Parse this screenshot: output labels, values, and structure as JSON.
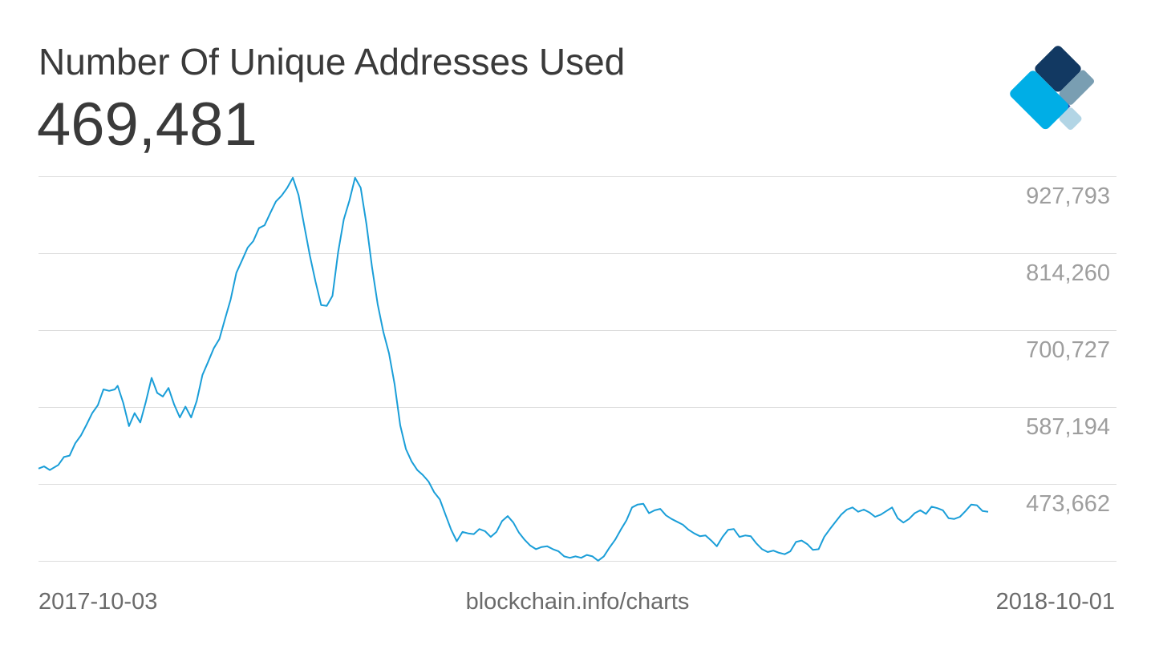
{
  "header": {
    "title": "Number Of Unique Addresses Used",
    "current_value": "469,481"
  },
  "footer": {
    "start_date": "2017-10-03",
    "source": "blockchain.info/charts",
    "end_date": "2018-10-01"
  },
  "logo": {
    "name": "blockchain-logo-icon",
    "colors": [
      "#123962",
      "#799eb2",
      "#2949b8",
      "#00aee6",
      "#b2d5e5"
    ]
  },
  "colors": {
    "line": "#1a9ed8",
    "grid": "#dddddd",
    "tick": "#9e9e9e"
  },
  "chart_data": {
    "type": "line",
    "title": "Number Of Unique Addresses Used",
    "xlabel": "",
    "ylabel": "",
    "x_range": [
      "2017-10-03",
      "2018-10-01"
    ],
    "yticks": [
      927793,
      814260,
      700727,
      587194,
      473662
    ],
    "ytick_labels": [
      "927,793",
      "814,260",
      "700,727",
      "587,194",
      "473,662"
    ],
    "ylim": [
      414000,
      946000
    ],
    "grid": true,
    "legend": "none",
    "series": [
      {
        "values": [
          [
            0,
            540000
          ],
          [
            2,
            543000
          ],
          [
            4,
            538000
          ],
          [
            7,
            545000
          ],
          [
            9,
            556000
          ],
          [
            11,
            558000
          ],
          [
            13,
            575000
          ],
          [
            15,
            586000
          ],
          [
            17,
            601000
          ],
          [
            19,
            617000
          ],
          [
            21,
            628000
          ],
          [
            23,
            650000
          ],
          [
            25,
            648000
          ],
          [
            27,
            650000
          ],
          [
            28,
            655000
          ],
          [
            30,
            631000
          ],
          [
            32,
            599000
          ],
          [
            34,
            617000
          ],
          [
            36,
            604000
          ],
          [
            38,
            633000
          ],
          [
            40,
            666000
          ],
          [
            42,
            645000
          ],
          [
            44,
            640000
          ],
          [
            46,
            652000
          ],
          [
            48,
            629000
          ],
          [
            50,
            611000
          ],
          [
            52,
            626000
          ],
          [
            54,
            611000
          ],
          [
            56,
            634000
          ],
          [
            58,
            670000
          ],
          [
            60,
            688000
          ],
          [
            62,
            707000
          ],
          [
            64,
            720000
          ],
          [
            66,
            748000
          ],
          [
            68,
            775000
          ],
          [
            70,
            812000
          ],
          [
            72,
            829000
          ],
          [
            74,
            847000
          ],
          [
            76,
            856000
          ],
          [
            78,
            874000
          ],
          [
            80,
            878000
          ],
          [
            82,
            895000
          ],
          [
            84,
            911000
          ],
          [
            86,
            919000
          ],
          [
            88,
            930000
          ],
          [
            90,
            944000
          ],
          [
            92,
            920000
          ],
          [
            94,
            878000
          ],
          [
            96,
            836000
          ],
          [
            98,
            800000
          ],
          [
            100,
            767000
          ],
          [
            102,
            766000
          ],
          [
            104,
            780000
          ],
          [
            106,
            840000
          ],
          [
            108,
            886000
          ],
          [
            110,
            912000
          ],
          [
            112,
            944000
          ],
          [
            114,
            930000
          ],
          [
            116,
            880000
          ],
          [
            118,
            820000
          ],
          [
            120,
            768000
          ],
          [
            122,
            730000
          ],
          [
            124,
            700000
          ],
          [
            126,
            657000
          ],
          [
            128,
            600000
          ],
          [
            130,
            567000
          ],
          [
            132,
            550000
          ],
          [
            134,
            538000
          ],
          [
            136,
            531000
          ],
          [
            138,
            522000
          ],
          [
            140,
            507000
          ],
          [
            142,
            497000
          ],
          [
            144,
            476000
          ],
          [
            146,
            455000
          ],
          [
            148,
            439000
          ],
          [
            150,
            452000
          ],
          [
            152,
            450000
          ],
          [
            154,
            449000
          ],
          [
            156,
            456000
          ],
          [
            158,
            453000
          ],
          [
            160,
            445000
          ],
          [
            162,
            452000
          ],
          [
            164,
            467000
          ],
          [
            166,
            474000
          ],
          [
            168,
            465000
          ],
          [
            170,
            451000
          ],
          [
            172,
            441000
          ],
          [
            174,
            433000
          ],
          [
            176,
            428000
          ],
          [
            178,
            431000
          ],
          [
            180,
            432000
          ],
          [
            182,
            428000
          ],
          [
            184,
            425000
          ],
          [
            186,
            418000
          ],
          [
            188,
            416000
          ],
          [
            190,
            418000
          ],
          [
            192,
            416000
          ],
          [
            194,
            420000
          ],
          [
            196,
            418000
          ],
          [
            198,
            412000
          ],
          [
            200,
            418000
          ],
          [
            202,
            430000
          ],
          [
            204,
            441000
          ],
          [
            206,
            455000
          ],
          [
            208,
            468000
          ],
          [
            210,
            486000
          ],
          [
            212,
            490000
          ],
          [
            214,
            491000
          ],
          [
            216,
            478000
          ],
          [
            218,
            482000
          ],
          [
            220,
            484000
          ],
          [
            222,
            475000
          ],
          [
            224,
            470000
          ],
          [
            226,
            466000
          ],
          [
            228,
            462000
          ],
          [
            230,
            455000
          ],
          [
            232,
            450000
          ],
          [
            234,
            446000
          ],
          [
            236,
            447000
          ],
          [
            238,
            440000
          ],
          [
            240,
            432000
          ],
          [
            242,
            445000
          ],
          [
            244,
            455000
          ],
          [
            246,
            456000
          ],
          [
            248,
            445000
          ],
          [
            250,
            447000
          ],
          [
            252,
            446000
          ],
          [
            254,
            436000
          ],
          [
            256,
            428000
          ],
          [
            258,
            424000
          ],
          [
            260,
            426000
          ],
          [
            262,
            423000
          ],
          [
            264,
            421000
          ],
          [
            266,
            425000
          ],
          [
            268,
            438000
          ],
          [
            270,
            440000
          ],
          [
            272,
            435000
          ],
          [
            274,
            427000
          ],
          [
            276,
            428000
          ],
          [
            278,
            445000
          ],
          [
            280,
            456000
          ],
          [
            282,
            466000
          ],
          [
            284,
            476000
          ],
          [
            286,
            483000
          ],
          [
            288,
            486000
          ],
          [
            290,
            480000
          ],
          [
            292,
            483000
          ],
          [
            294,
            479000
          ],
          [
            296,
            473000
          ],
          [
            298,
            476000
          ],
          [
            300,
            481000
          ],
          [
            302,
            486000
          ],
          [
            304,
            471000
          ],
          [
            306,
            465000
          ],
          [
            308,
            470000
          ],
          [
            310,
            478000
          ],
          [
            312,
            482000
          ],
          [
            314,
            477000
          ],
          [
            316,
            487000
          ],
          [
            318,
            485000
          ],
          [
            320,
            482000
          ],
          [
            322,
            471000
          ],
          [
            324,
            470000
          ],
          [
            326,
            473000
          ],
          [
            328,
            481000
          ],
          [
            330,
            490000
          ],
          [
            332,
            489000
          ],
          [
            334,
            481000
          ],
          [
            336,
            480000
          ]
        ]
      }
    ]
  }
}
